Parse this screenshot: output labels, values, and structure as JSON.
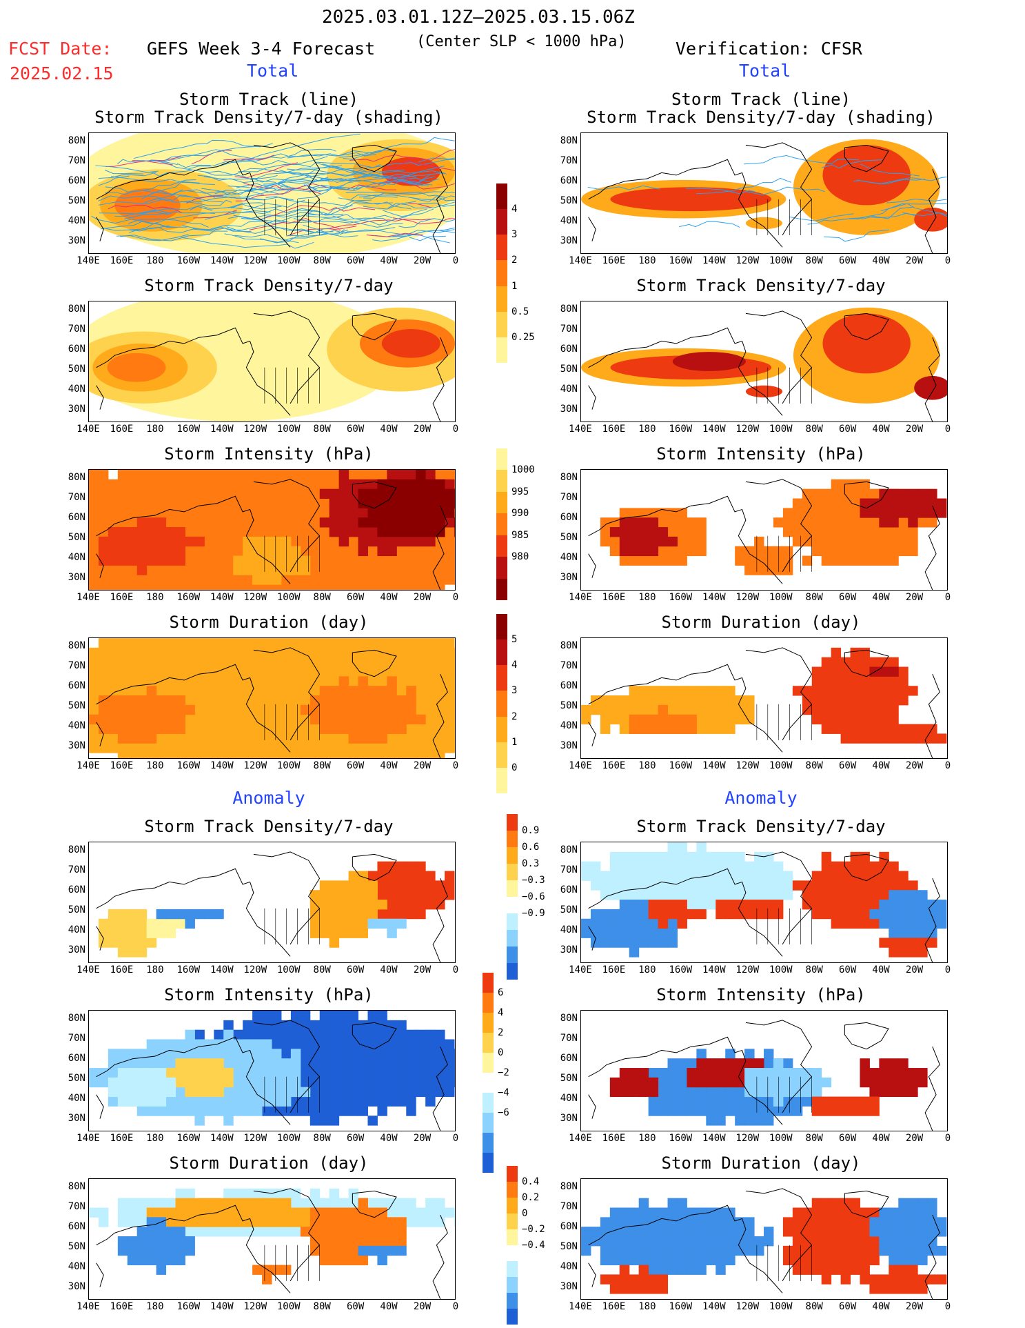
{
  "header": {
    "date_range": "2025.03.01.12Z–2025.03.15.06Z",
    "fcst_label": "FCST Date:",
    "fcst_date": "2025.02.15",
    "left_title": "GEFS Week 3-4 Forecast",
    "criterion": "(Center SLP < 1000 hPa)",
    "right_title": "Verification: CFSR",
    "left_total": "Total",
    "right_total": "Total"
  },
  "sections": {
    "anomaly_left": "Anomaly",
    "anomaly_right": "Anomaly"
  },
  "panel_titles": {
    "track_line": "Storm Track (line)",
    "track_shading": "Storm Track Density/7-day (shading)",
    "density": "Storm Track Density/7-day",
    "intensity": "Storm Intensity (hPa)",
    "duration": "Storm Duration (day)"
  },
  "axes": {
    "lat": [
      "80N",
      "70N",
      "60N",
      "50N",
      "40N",
      "30N"
    ],
    "lon": [
      "140E",
      "160E",
      "180",
      "160W",
      "140W",
      "120W",
      "100W",
      "80W",
      "60W",
      "40W",
      "20W",
      "0"
    ]
  },
  "colorbars": {
    "density_total": [
      "4",
      "3",
      "2",
      "1",
      "0.5",
      "0.25"
    ],
    "intensity_total": [
      "1000",
      "995",
      "990",
      "985",
      "980"
    ],
    "duration_total": [
      "5",
      "4",
      "3",
      "2",
      "1",
      "0"
    ],
    "density_anom": [
      "0.9",
      "0.6",
      "0.3",
      "−0.3",
      "−0.6",
      "−0.9"
    ],
    "intensity_anom": [
      "6",
      "4",
      "2",
      "0",
      "−2",
      "−4",
      "−6"
    ],
    "duration_anom": [
      "0.4",
      "0.2",
      "0",
      "−0.2",
      "−0.4"
    ]
  },
  "colors": {
    "c1": "#fff59d",
    "c2": "#ffd24d",
    "c3": "#ffaa1a",
    "c4": "#ff7a10",
    "c5": "#ee3a10",
    "c6": "#b81010",
    "c7": "#8a0000",
    "n1": "#bff0ff",
    "n2": "#8cd2ff",
    "n3": "#3d8fe8",
    "n4": "#1f5fd6",
    "track": "#2aa0ee"
  }
}
